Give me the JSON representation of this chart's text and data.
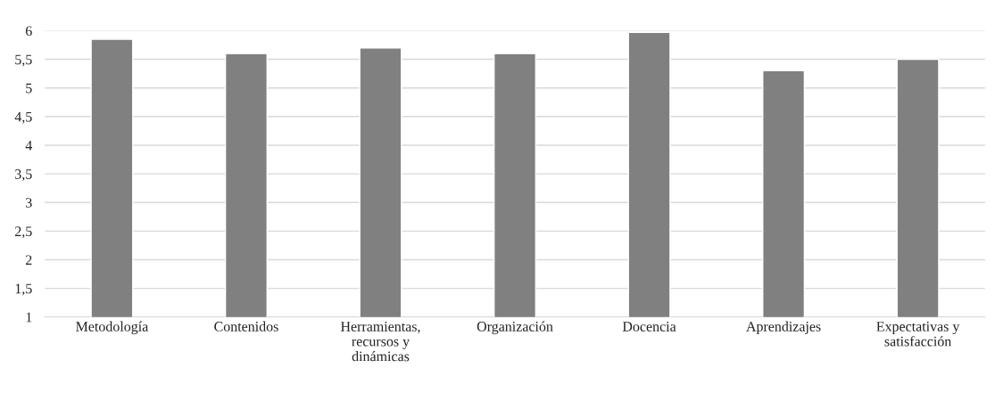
{
  "chart_data": {
    "type": "bar",
    "categories": [
      "Metodología",
      "Contenidos",
      "Herramientas,\nrecursos y\ndinámicas",
      "Organización",
      "Docencia",
      "Aprendizajes",
      "Expectativas y\nsatisfacción"
    ],
    "values": [
      5.85,
      5.6,
      5.7,
      5.6,
      5.97,
      5.3,
      5.5
    ],
    "color": "#808080",
    "ylim": [
      1,
      6
    ],
    "yticks": [
      1,
      {
        "value": 1.5,
        "label": "1,5"
      },
      2,
      {
        "value": 2.5,
        "label": "2,5"
      },
      3,
      {
        "value": 3.5,
        "label": "3,5"
      },
      4,
      {
        "value": 4.5,
        "label": "4,5"
      },
      5,
      {
        "value": 5.5,
        "label": "5,5"
      },
      6
    ],
    "grid": "y"
  }
}
